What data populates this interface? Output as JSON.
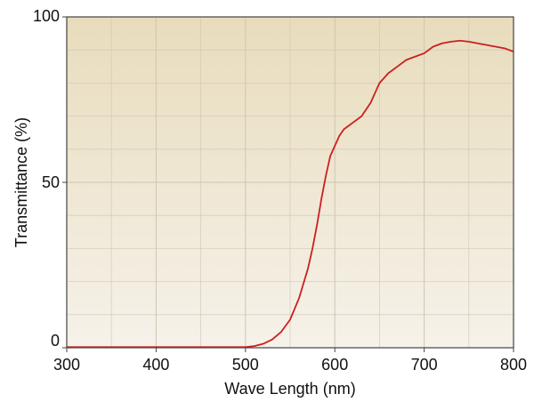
{
  "chart_data": {
    "type": "line",
    "title": "",
    "xlabel": "Wave Length (nm)",
    "ylabel": "Transmittance (%)",
    "xlim": [
      300,
      800
    ],
    "ylim": [
      0,
      100
    ],
    "x_ticks": [
      300,
      400,
      500,
      600,
      700,
      800
    ],
    "x_tick_labels": [
      "300",
      "400",
      "500",
      "600",
      "700",
      "800"
    ],
    "y_ticks": [
      0,
      50,
      100
    ],
    "y_tick_labels": [
      "0",
      "50",
      "100"
    ],
    "grid": true,
    "x_minor_gridlines": [
      350,
      450,
      550,
      650,
      750
    ],
    "y_minor_gridlines": [
      10,
      20,
      30,
      40,
      60,
      70,
      80,
      90
    ],
    "legend": "none",
    "colors": {
      "line": "#cc1f1f",
      "plot_background_top": "#e8dcbc",
      "plot_background_bottom": "#f6f2ea",
      "grid": "#cfc6b2",
      "axis": "#444444"
    },
    "series": [
      {
        "x": [
          300,
          350,
          400,
          450,
          500,
          510,
          520,
          530,
          540,
          550,
          560,
          570,
          575,
          580,
          585,
          590,
          595,
          600,
          605,
          610,
          615,
          620,
          630,
          640,
          645,
          650,
          660,
          670,
          680,
          690,
          700,
          710,
          720,
          730,
          740,
          750,
          760,
          770,
          780,
          790,
          800
        ],
        "values": [
          0.2,
          0.2,
          0.2,
          0.2,
          0.2,
          0.5,
          1.2,
          2.5,
          4.8,
          8.5,
          15,
          24,
          30,
          37,
          45,
          52,
          58,
          61,
          64,
          66,
          67,
          68,
          70,
          74,
          77,
          80,
          83,
          85,
          87,
          88,
          89,
          91,
          92,
          92.5,
          92.8,
          92.5,
          92,
          91.5,
          91,
          90.5,
          89.5
        ]
      }
    ]
  }
}
